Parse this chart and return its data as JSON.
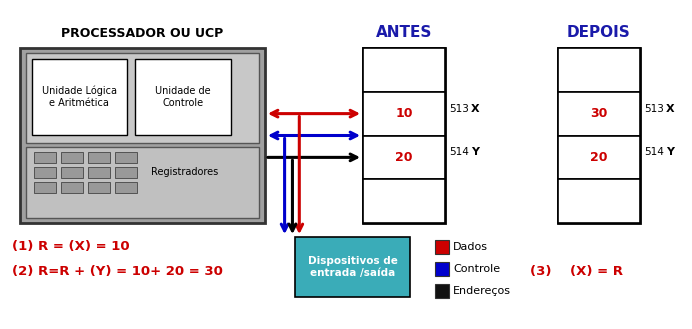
{
  "bg_color": "#ffffff",
  "title_processor": "PROCESSADOR OU UCP",
  "title_antes": "ANTES",
  "title_depois": "DEPOIS",
  "label_ula": "Unidade Lógica\ne Aritmética",
  "label_uc": "Unidade de\nControle",
  "label_reg": "Registradores",
  "label_disp": "Dispositivos de\nentrada /saída",
  "antes_val1": "10",
  "antes_val2": "20",
  "antes_addr1": "513",
  "antes_addr2": "514",
  "antes_var1": "X",
  "antes_var2": "Y",
  "depois_val1": "30",
  "depois_val2": "20",
  "depois_addr1": "513",
  "depois_addr2": "514",
  "depois_var1": "X",
  "depois_var2": "Y",
  "legend_dados": "Dados",
  "legend_controle": "Controle",
  "legend_enderecos": "Endereços",
  "step1": "(1) R = (X) = 10",
  "step2": "(2) R=R + (Y) = 10+ 20 = 30",
  "step3": "(3)    (X) = R",
  "color_red": "#cc0000",
  "color_blue": "#0000cc",
  "color_black": "#000000",
  "color_teal": "#3aacb8",
  "color_dados": "#cc0000",
  "color_controle": "#0000cc",
  "color_enderecos": "#111111",
  "proc_gray": "#a0a0a0",
  "proc_inner_gray": "#c8c8c8",
  "proc_reg_gray": "#c0c0c0",
  "proc_reg_btn": "#999999"
}
